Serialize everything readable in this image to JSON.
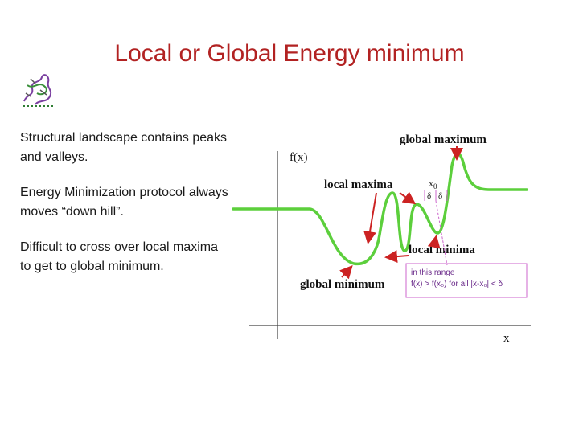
{
  "slide": {
    "title": "Local or Global Energy minimum",
    "bullets": [
      "Structural landscape contains peaks and valleys.",
      "Energy Minimization protocol always moves “down hill”.",
      "Difficult to cross over local maxima to get to global minimum."
    ]
  },
  "diagram": {
    "y_axis_label": "f(x)",
    "x_axis_label": "x",
    "labels": {
      "global_maximum": "global maximum",
      "local_maxima": "local maxima",
      "local_minima": "local minima",
      "global_minimum": "global minimum",
      "x0": "x",
      "x0_sub": "0",
      "delta_left": "δ",
      "delta_right": "δ",
      "range_line1": "in this range",
      "range_line2": "f(x) > f(x₀) for all |x-x₀| < δ"
    },
    "colors": {
      "title": "#b22222",
      "curve": "#5ccf3c",
      "arrow": "#cc2222",
      "range_box": "#cc66cc",
      "axis": "#444444"
    }
  },
  "logo": {
    "icon": "protein-structure-icon"
  }
}
